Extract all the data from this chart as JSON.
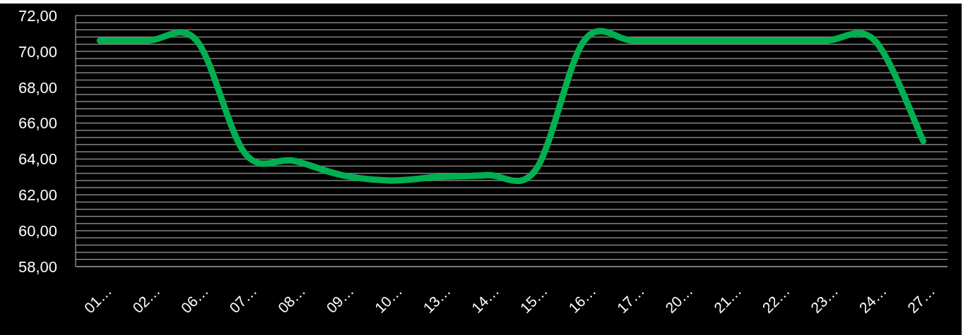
{
  "chart_data": {
    "type": "line",
    "categories": [
      "01…",
      "02…",
      "06…",
      "07…",
      "08…",
      "09…",
      "10…",
      "13…",
      "14…",
      "15…",
      "16…",
      "17…",
      "20…",
      "21…",
      "22…",
      "23…",
      "24…",
      "27…"
    ],
    "series": [
      {
        "color": "#00b050",
        "values": [
          70.6,
          70.6,
          70.6,
          64.3,
          63.9,
          63.1,
          62.8,
          63.0,
          63.1,
          63.4,
          70.6,
          70.6,
          70.6,
          70.6,
          70.6,
          70.6,
          70.6,
          65.0
        ]
      }
    ],
    "ylim": [
      58,
      72
    ],
    "yticks": [
      {
        "value": 58,
        "label": "58,00"
      },
      {
        "value": 58.4,
        "label": null
      },
      {
        "value": 58.8,
        "label": null
      },
      {
        "value": 59.2,
        "label": null
      },
      {
        "value": 59.6,
        "label": null
      },
      {
        "value": 60,
        "label": "60,00"
      },
      {
        "value": 60.4,
        "label": null
      },
      {
        "value": 60.8,
        "label": null
      },
      {
        "value": 61.2,
        "label": null
      },
      {
        "value": 61.6,
        "label": null
      },
      {
        "value": 62,
        "label": "62,00"
      },
      {
        "value": 62.4,
        "label": null
      },
      {
        "value": 62.8,
        "label": null
      },
      {
        "value": 63.2,
        "label": null
      },
      {
        "value": 63.6,
        "label": null
      },
      {
        "value": 64,
        "label": "64,00"
      },
      {
        "value": 64.4,
        "label": null
      },
      {
        "value": 64.8,
        "label": null
      },
      {
        "value": 65.2,
        "label": null
      },
      {
        "value": 65.6,
        "label": null
      },
      {
        "value": 66,
        "label": "66,00"
      },
      {
        "value": 66.4,
        "label": null
      },
      {
        "value": 66.8,
        "label": null
      },
      {
        "value": 67.2,
        "label": null
      },
      {
        "value": 67.6,
        "label": null
      },
      {
        "value": 68,
        "label": "68,00"
      },
      {
        "value": 68.4,
        "label": null
      },
      {
        "value": 68.8,
        "label": null
      },
      {
        "value": 69.2,
        "label": null
      },
      {
        "value": 69.6,
        "label": null
      },
      {
        "value": 70,
        "label": "70,00"
      },
      {
        "value": 70.4,
        "label": null
      },
      {
        "value": 70.8,
        "label": null
      },
      {
        "value": 71.2,
        "label": null
      },
      {
        "value": 71.6,
        "label": null
      },
      {
        "value": 72,
        "label": "72,00"
      }
    ],
    "grid": "y"
  }
}
